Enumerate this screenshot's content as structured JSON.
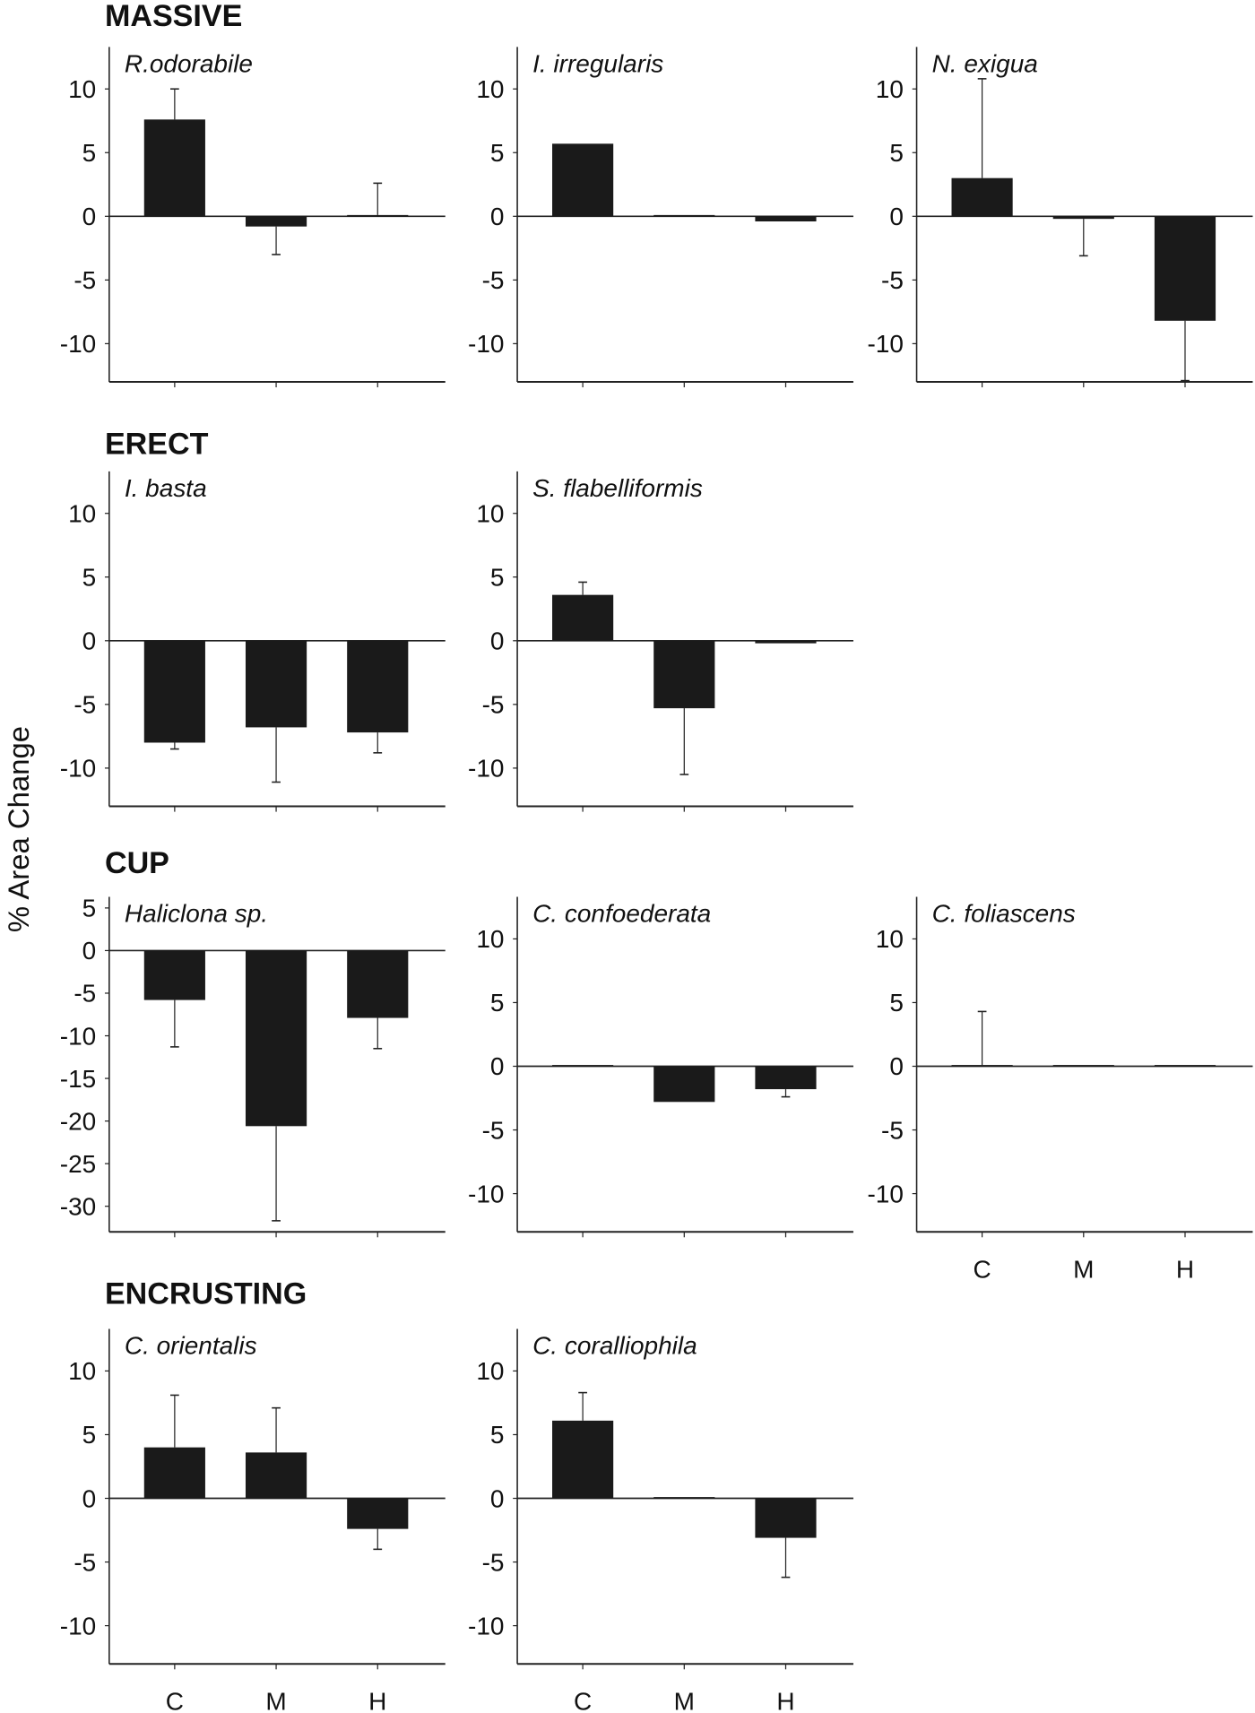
{
  "chart_data": {
    "type": "bar",
    "ylabel": "% Area Change",
    "categories": [
      "C",
      "M",
      "H"
    ],
    "bar_color": "#1a1a1a",
    "groups": [
      {
        "label": "MASSIVE",
        "panels": [
          {
            "title": "R.odorabile",
            "ylim": [
              -13,
              13.3
            ],
            "yticks": [
              10,
              5,
              0,
              -5,
              -10
            ],
            "values": [
              7.6,
              -0.8,
              0.1
            ],
            "error_ends": [
              10.0,
              -3.0,
              2.6
            ],
            "show_xticklabels": false
          },
          {
            "title": "I. irregularis",
            "ylim": [
              -13,
              13.3
            ],
            "yticks": [
              10,
              5,
              0,
              -5,
              -10
            ],
            "values": [
              5.7,
              0.1,
              -0.4
            ],
            "error_ends": [
              null,
              null,
              null
            ],
            "show_xticklabels": false
          },
          {
            "title": "N. exigua",
            "ylim": [
              -13,
              13.3
            ],
            "yticks": [
              10,
              5,
              0,
              -5,
              -10
            ],
            "values": [
              3.0,
              -0.2,
              -8.2
            ],
            "error_ends": [
              10.8,
              -3.1,
              -12.9
            ],
            "show_xticklabels": false
          }
        ]
      },
      {
        "label": "ERECT",
        "panels": [
          {
            "title": "I. basta",
            "ylim": [
              -13,
              13.3
            ],
            "yticks": [
              10,
              5,
              0,
              -5,
              -10
            ],
            "values": [
              -8.0,
              -6.8,
              -7.2
            ],
            "error_ends": [
              -8.5,
              -11.1,
              -8.8
            ],
            "show_xticklabels": false
          },
          {
            "title": "S. flabelliformis",
            "ylim": [
              -13,
              13.3
            ],
            "yticks": [
              10,
              5,
              0,
              -5,
              -10
            ],
            "values": [
              3.6,
              -5.3,
              -0.2
            ],
            "error_ends": [
              4.6,
              -10.5,
              null
            ],
            "show_xticklabels": false
          }
        ]
      },
      {
        "label": "CUP",
        "panels": [
          {
            "title": "Haliclona sp.",
            "ylim": [
              -33,
              6.3
            ],
            "yticks": [
              5,
              0,
              -5,
              -10,
              -15,
              -20,
              -25,
              -30
            ],
            "values": [
              -5.8,
              -20.6,
              -7.9
            ],
            "error_ends": [
              -11.3,
              -31.7,
              -11.5
            ],
            "show_xticklabels": false
          },
          {
            "title": "C. confoederata",
            "ylim": [
              -13,
              13.3
            ],
            "yticks": [
              10,
              5,
              0,
              -5,
              -10
            ],
            "values": [
              0.1,
              -2.8,
              -1.8
            ],
            "error_ends": [
              null,
              null,
              -2.4
            ],
            "show_xticklabels": false
          },
          {
            "title": "C. foliascens",
            "ylim": [
              -13,
              13.3
            ],
            "yticks": [
              10,
              5,
              0,
              -5,
              -10
            ],
            "values": [
              0.1,
              0.1,
              0.1
            ],
            "error_ends": [
              4.3,
              null,
              null
            ],
            "show_xticklabels": true
          }
        ]
      },
      {
        "label": "ENCRUSTING",
        "panels": [
          {
            "title": "C. orientalis",
            "ylim": [
              -13,
              13.3
            ],
            "yticks": [
              10,
              5,
              0,
              -5,
              -10
            ],
            "values": [
              4.0,
              3.6,
              -2.4
            ],
            "error_ends": [
              8.1,
              7.1,
              -4.0
            ],
            "show_xticklabels": true
          },
          {
            "title": "C. coralliophila",
            "ylim": [
              -13,
              13.3
            ],
            "yticks": [
              10,
              5,
              0,
              -5,
              -10
            ],
            "values": [
              6.1,
              0.1,
              -3.1
            ],
            "error_ends": [
              8.3,
              null,
              -6.2
            ],
            "show_xticklabels": true
          }
        ]
      }
    ]
  }
}
